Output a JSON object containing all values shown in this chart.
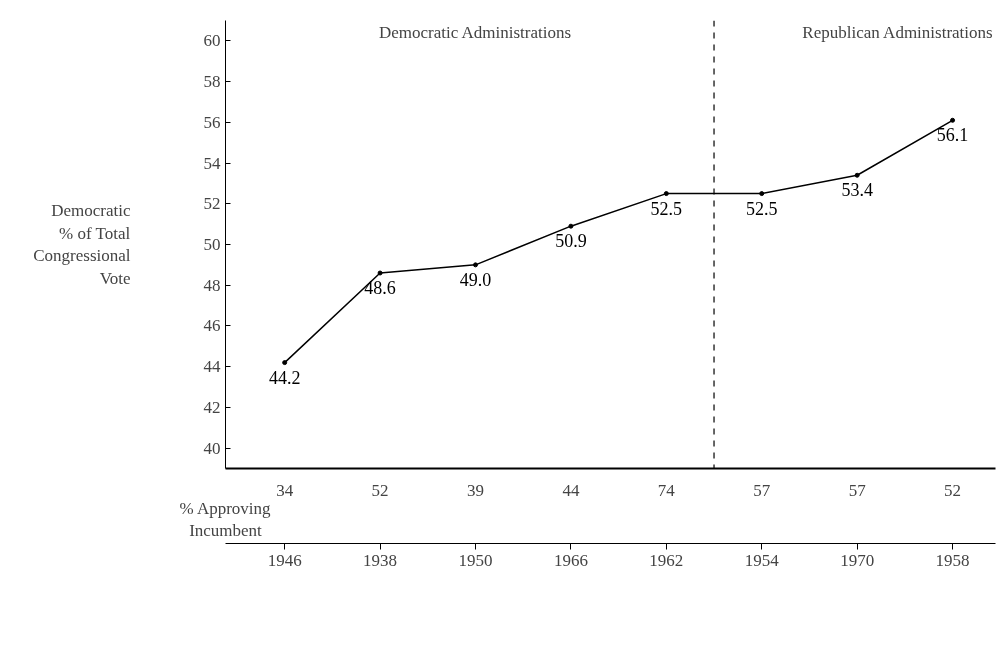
{
  "chart_data": {
    "type": "line",
    "ylabel": "Democratic\n% of Total\nCongressional\nVote",
    "categories": [
      "1946",
      "1938",
      "1950",
      "1966",
      "1962",
      "1954",
      "1970",
      "1958"
    ],
    "series": [
      {
        "color": "#000000",
        "values": [
          44.2,
          48.6,
          49.0,
          50.9,
          52.5,
          52.5,
          53.4,
          56.1
        ]
      }
    ],
    "value_labels": [
      "44.2",
      "48.6",
      "49.0",
      "50.9",
      "52.5",
      "52.5",
      "53.4",
      "56.1"
    ],
    "marker": "circle",
    "line_style": "solid",
    "grid": false,
    "ylim": [
      39,
      61
    ],
    "yticks": [
      40,
      42,
      44,
      46,
      48,
      50,
      52,
      54,
      56,
      58,
      60
    ],
    "annotations": [
      "Democratic Administrations",
      "Republican Administrations",
      "% Approving\nIncumbent",
      "34",
      "52",
      "39",
      "44",
      "74",
      "57",
      "57",
      "52"
    ]
  }
}
